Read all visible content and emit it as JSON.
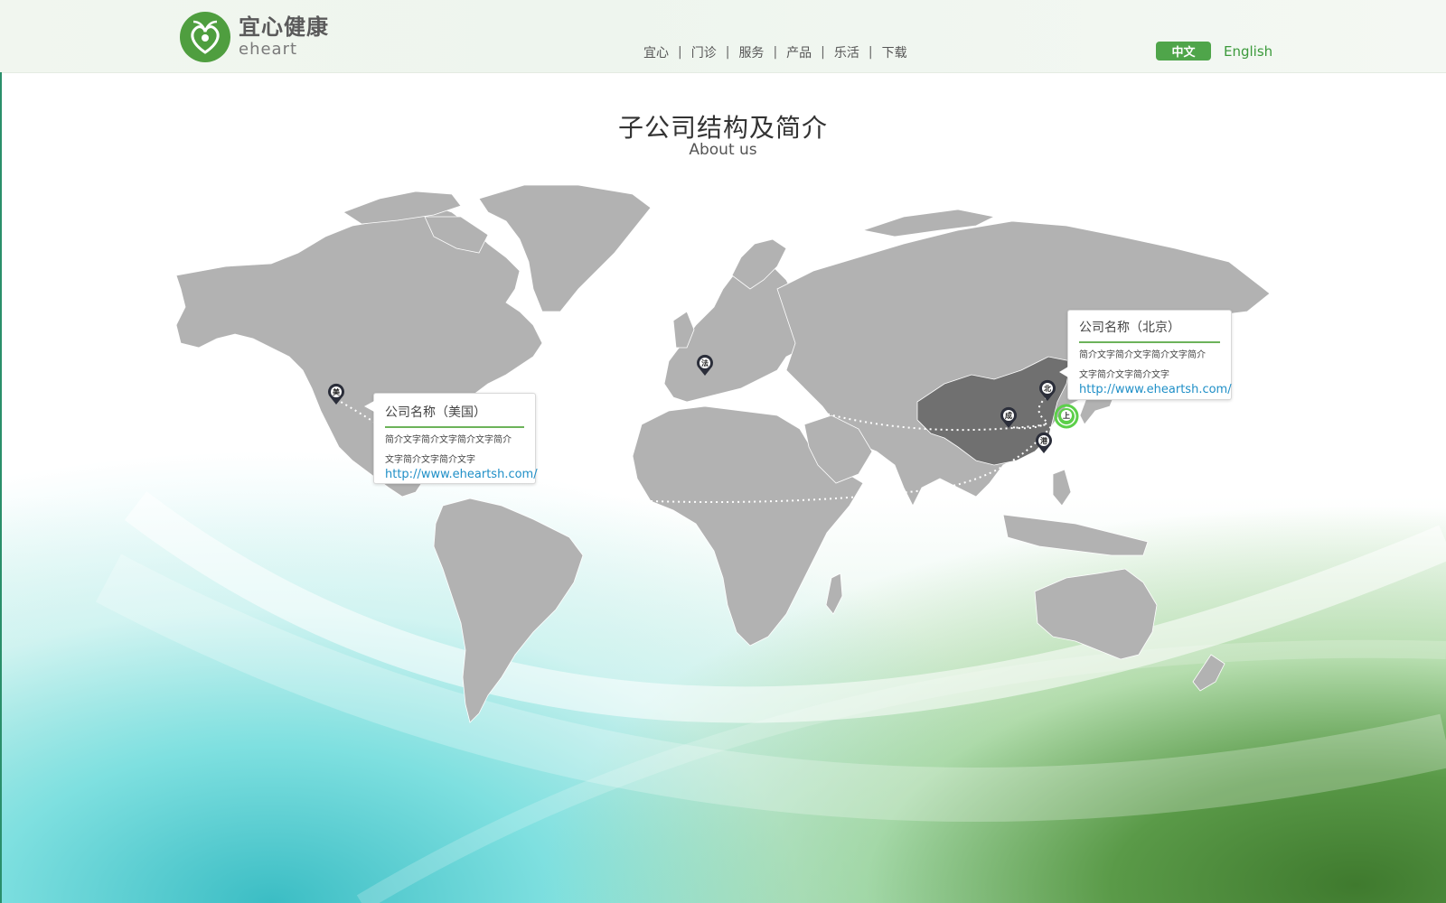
{
  "brand": {
    "name_cn": "宜心健康",
    "name_en": "eheart",
    "accent": "#4fa54a"
  },
  "nav": {
    "items": [
      "宜心",
      "门诊",
      "服务",
      "产品",
      "乐活",
      "下载"
    ]
  },
  "lang": {
    "cn": "中文",
    "en": "English",
    "active": "中文"
  },
  "page": {
    "title": "子公司结构及简介",
    "subtitle": "About us"
  },
  "map": {
    "pins": [
      {
        "id": "us",
        "label": "美"
      },
      {
        "id": "fr",
        "label": "法"
      },
      {
        "id": "bj",
        "label": "北"
      },
      {
        "id": "cd",
        "label": "成"
      },
      {
        "id": "sh",
        "label": "上",
        "active": true
      },
      {
        "id": "hk",
        "label": "港"
      }
    ],
    "land_color": "#b2b2b2",
    "china_color": "#707070",
    "route_color": "#ffffff"
  },
  "cards": {
    "us": {
      "name": "公司名称（美国）",
      "desc_line1": "简介文字简介文字简介文字简介",
      "desc_line2": "文字简介文字简介文字",
      "link": "http://www.eheartsh.com/"
    },
    "bj": {
      "name": "公司名称（北京）",
      "desc_line1": "简介文字简介文字简介文字简介",
      "desc_line2": "文字简介文字简介文字",
      "link": "http://www.eheartsh.com/"
    }
  }
}
